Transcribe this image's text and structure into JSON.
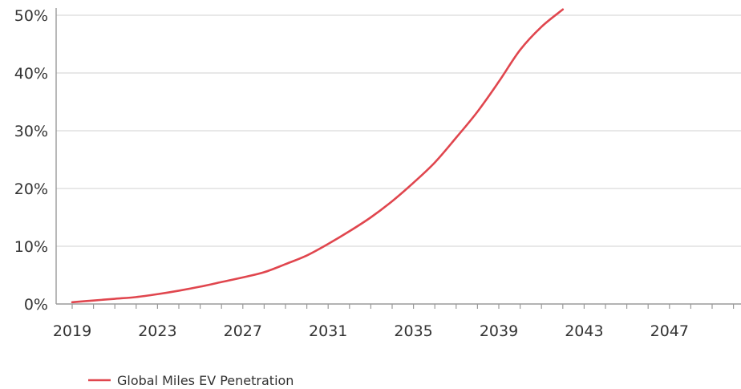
{
  "chart_data": {
    "type": "line",
    "title": "",
    "xlabel": "",
    "ylabel": "",
    "x_ticks": [
      "2019",
      "2023",
      "2027",
      "2031",
      "2035",
      "2039",
      "2043",
      "2047"
    ],
    "y_ticks": [
      "0%",
      "10%",
      "20%",
      "30%",
      "40%",
      "50%"
    ],
    "xlim": [
      2019,
      2050
    ],
    "ylim": [
      0,
      50
    ],
    "grid": "horizontal",
    "legend_position": "bottom-left",
    "series": [
      {
        "name": "Global Miles EV Penetration",
        "color": "#e0464e",
        "x": [
          2019,
          2020,
          2021,
          2022,
          2023,
          2024,
          2025,
          2026,
          2027,
          2028,
          2029,
          2030,
          2031,
          2032,
          2033,
          2034,
          2035,
          2036,
          2037,
          2038,
          2039,
          2040,
          2041,
          2042
        ],
        "y": [
          0.3,
          0.6,
          0.9,
          1.2,
          1.7,
          2.3,
          3.0,
          3.8,
          4.6,
          5.5,
          6.9,
          8.4,
          10.4,
          12.6,
          15.0,
          17.8,
          21.0,
          24.5,
          28.8,
          33.3,
          38.5,
          44.0,
          48.0,
          51.0
        ]
      }
    ]
  }
}
